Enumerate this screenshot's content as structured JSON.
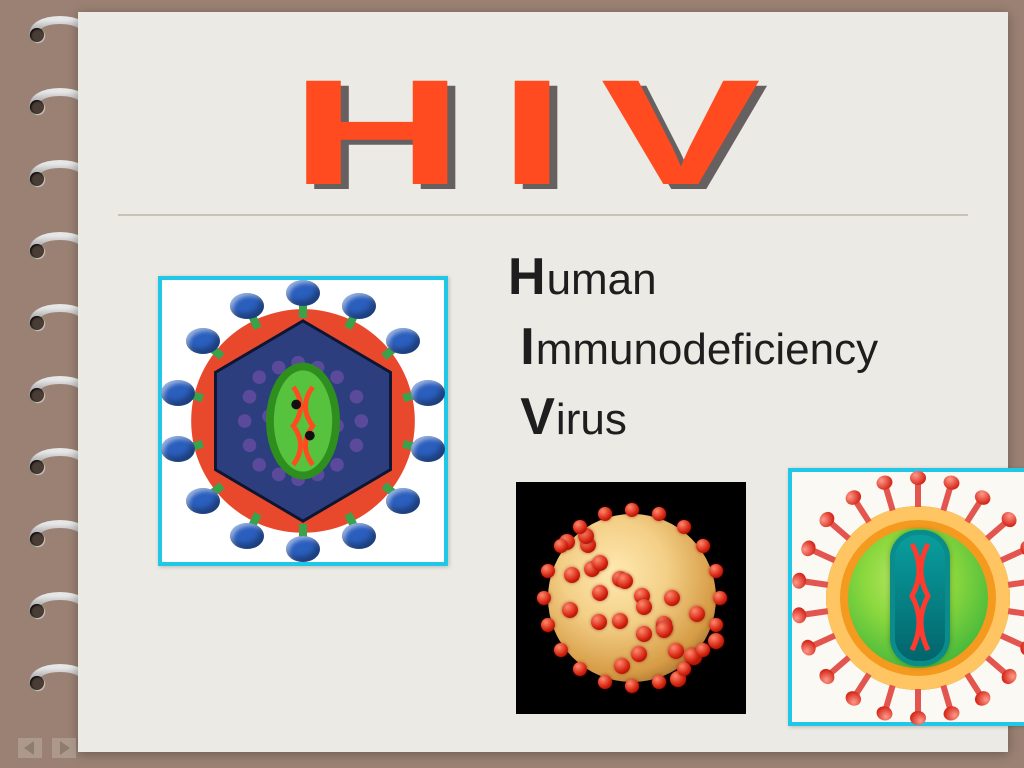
{
  "title": "HIV",
  "title_color": "#ff4b1f",
  "title_shadow": "#666060",
  "rule_color": "#c9c3b6",
  "page_bg": "#eceae4",
  "frame_bg": "#9a8173",
  "expansion": {
    "line1_cap": "H",
    "line1_rest": "uman",
    "line2_cap": "I",
    "line2_rest": "mmunodeficiency",
    "line3_cap": "V",
    "line3_rest": "irus",
    "text_color": "#1e1e1e",
    "font_size_pt": 34
  },
  "images": {
    "border_color": "#21c7e6",
    "img1": {
      "desc": "HIV virion cutaway: red outer sphere, blue glycoprotein knobs on green stems, hexagonal capsid, purple matrix spheres, green RNA capsule with red strands",
      "outer_red": "#e8492d",
      "knob_blue": "#2b5fbe",
      "stem_green": "#3aa24b",
      "hex_blue": "#2c3e7e",
      "matrix_purple": "#5b4a9c",
      "rna_green": "#56c23d"
    },
    "img2": {
      "desc": "Spherical virion on black: tan sphere studded with red surface proteins",
      "bg": "#000000",
      "sphere_light": "#ffe9b0",
      "sphere_dark": "#7a4f1f",
      "dot_red": "#d3200d",
      "dot_count": 30
    },
    "img3": {
      "desc": "HIV cross-section: orange lipid envelope ring, bright green interior, teal capsule with two red RNA strands, red spike proteins around rim",
      "bg": "#faf9f4",
      "envelope_outer": "#ffc562",
      "envelope_inner": "#f39a1f",
      "interior_green": "#8bd83e",
      "core_teal": "#0aa0a0",
      "spike_red": "#e2564f",
      "spike_count": 22
    }
  },
  "binding": {
    "ring_count": 10,
    "ring_metal_light": "#e6e6e6",
    "ring_metal_dark": "#7d7d7d",
    "hole_color": "#4a3d35"
  }
}
